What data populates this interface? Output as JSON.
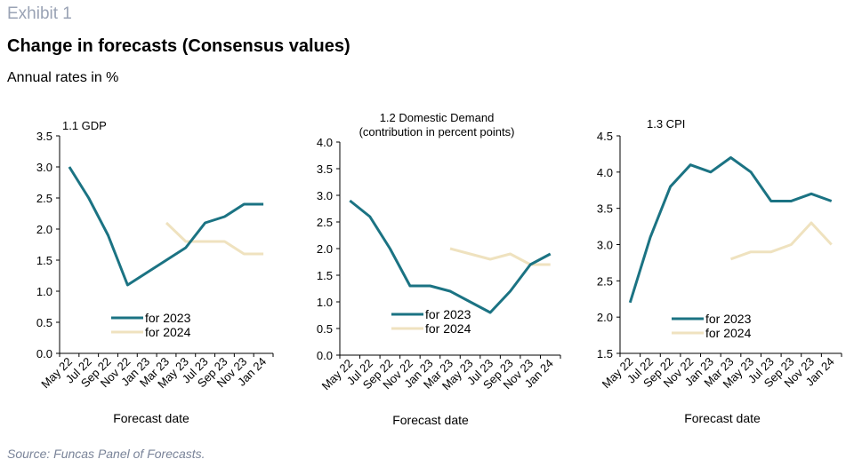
{
  "header": {
    "exhibit": "Exhibit 1",
    "title": "Change in forecasts (Consensus values)",
    "subtitle": "Annual rates in %"
  },
  "footer": {
    "source": "Source: Funcas Panel of Forecasts."
  },
  "colors": {
    "for_2023": "#1b7383",
    "for_2024": "#efe2bf"
  },
  "chart_data": [
    {
      "type": "line",
      "title": "1.1 GDP",
      "xlabel": "Forecast date",
      "x": [
        "May 22",
        "Jul 22",
        "Sep 22",
        "Nov 22",
        "Jan 23",
        "Mar 23",
        "May 23",
        "Jul 23",
        "Sep 23",
        "Nov 23",
        "Jan 24"
      ],
      "ylim": [
        0,
        3.5
      ],
      "yticks": [
        "0.0",
        "0.5",
        "1.0",
        "1.5",
        "2.0",
        "2.5",
        "3.0",
        "3.5"
      ],
      "legend_position": "bottom-left",
      "series": [
        {
          "name": "for 2023",
          "color": "#1b7383",
          "values": [
            3.0,
            2.5,
            1.9,
            1.1,
            1.3,
            1.5,
            1.7,
            2.1,
            2.2,
            2.4,
            2.4
          ]
        },
        {
          "name": "for 2024",
          "color": "#efe2bf",
          "values": [
            null,
            null,
            null,
            null,
            null,
            2.1,
            1.8,
            1.8,
            1.8,
            1.6,
            1.6
          ]
        }
      ]
    },
    {
      "type": "line",
      "title": "1.2 Domestic Demand",
      "title_line2": "(contribution in percent points)",
      "xlabel": "Forecast date",
      "x": [
        "May 22",
        "Jul 22",
        "Sep 22",
        "Nov 22",
        "Jan 23",
        "Mar 23",
        "May 23",
        "Jul 23",
        "Sep 23",
        "Nov 23",
        "Jan 24"
      ],
      "ylim": [
        0,
        4.0
      ],
      "yticks": [
        "0.0",
        "0.5",
        "1.0",
        "1.5",
        "2.0",
        "2.5",
        "3.0",
        "3.5",
        "4.0"
      ],
      "legend_position": "bottom-left",
      "series": [
        {
          "name": "for 2023",
          "color": "#1b7383",
          "values": [
            2.9,
            2.6,
            2.0,
            1.3,
            1.3,
            1.2,
            1.0,
            0.8,
            1.2,
            1.7,
            1.9
          ]
        },
        {
          "name": "for 2024",
          "color": "#efe2bf",
          "values": [
            null,
            null,
            null,
            null,
            null,
            2.0,
            1.9,
            1.8,
            1.9,
            1.7,
            1.7
          ]
        }
      ]
    },
    {
      "type": "line",
      "title": "1.3 CPI",
      "xlabel": "Forecast date",
      "x": [
        "May 22",
        "Jul 22",
        "Sep 22",
        "Nov 22",
        "Jan 23",
        "Mar 23",
        "May 23",
        "Jul 23",
        "Sep 23",
        "Nov 23",
        "Jan 24"
      ],
      "ylim": [
        1.5,
        4.5
      ],
      "yticks": [
        "1.5",
        "2.0",
        "2.5",
        "3.0",
        "3.5",
        "4.0",
        "4.5"
      ],
      "legend_position": "bottom-left",
      "series": [
        {
          "name": "for 2023",
          "color": "#1b7383",
          "values": [
            2.2,
            3.1,
            3.8,
            4.1,
            4.0,
            4.2,
            4.0,
            3.6,
            3.6,
            3.7,
            3.6
          ]
        },
        {
          "name": "for 2024",
          "color": "#efe2bf",
          "values": [
            null,
            null,
            null,
            null,
            null,
            2.8,
            2.9,
            2.9,
            3.0,
            3.3,
            3.0
          ]
        }
      ]
    }
  ]
}
